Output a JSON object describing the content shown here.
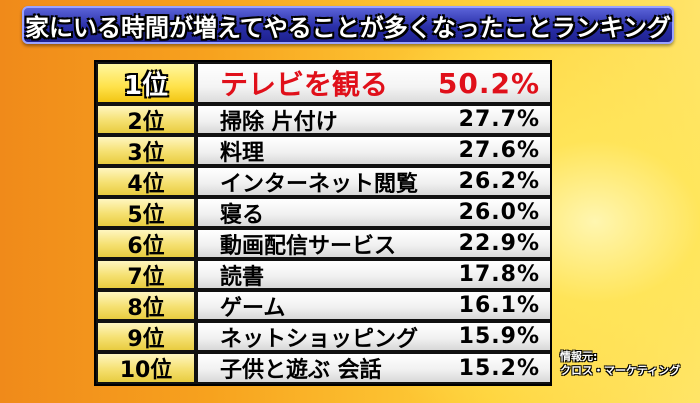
{
  "title": "家にいる時間が増えてやることが多くなったことランキング",
  "ranking": [
    {
      "rank": "1位",
      "item": "テレビを観る",
      "percent": "50.2%"
    },
    {
      "rank": "2位",
      "item": "掃除 片付け",
      "percent": "27.7%"
    },
    {
      "rank": "3位",
      "item": "料理",
      "percent": "27.6%"
    },
    {
      "rank": "4位",
      "item": "インターネット閲覧",
      "percent": "26.2%"
    },
    {
      "rank": "5位",
      "item": "寝る",
      "percent": "26.0%"
    },
    {
      "rank": "6位",
      "item": "動画配信サービス",
      "percent": "22.9%"
    },
    {
      "rank": "7位",
      "item": "読書",
      "percent": "17.8%"
    },
    {
      "rank": "8位",
      "item": "ゲーム",
      "percent": "16.1%"
    },
    {
      "rank": "9位",
      "item": "ネットショッピング",
      "percent": "15.9%"
    },
    {
      "rank": "10位",
      "item": "子供と遊ぶ 会話",
      "percent": "15.2%"
    }
  ],
  "source": {
    "label": "情報元:",
    "name": "クロス・マーケティング"
  },
  "colors": {
    "title_bar": "#2a2fa8",
    "top_item_text": "#e0101a",
    "rank_cell": "#f5e070"
  }
}
